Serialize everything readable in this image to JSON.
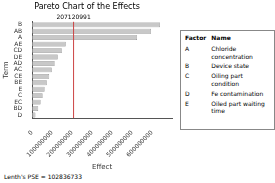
{
  "chart_data": {
    "type": "bar",
    "orientation": "horizontal",
    "title": "Pareto Chart of the Effects",
    "xlabel": "Effect",
    "ylabel": "Term",
    "categories": [
      "B",
      "AB",
      "A",
      "AE",
      "CD",
      "DE",
      "AD",
      "AC",
      "CE",
      "BE",
      "E",
      "C",
      "EC",
      "BD",
      "D"
    ],
    "values": [
      640000000,
      595000000,
      525000000,
      168000000,
      148000000,
      128000000,
      112000000,
      98000000,
      85000000,
      73000000,
      62000000,
      52000000,
      42000000,
      30000000,
      16000000
    ],
    "color": "#c8c8c8",
    "xlim": [
      0,
      700000000
    ],
    "xticks": [
      0,
      100000000,
      200000000,
      300000000,
      400000000,
      500000000,
      600000000
    ],
    "grid": false,
    "annotations": [
      {
        "type": "vline",
        "x": 207120991,
        "label": "207120991",
        "color": "#cc4444"
      },
      {
        "type": "note",
        "text": "Lenth's PSE = 102836733"
      }
    ],
    "factor_table": {
      "columns": [
        "Factor",
        "Name"
      ],
      "rows": [
        [
          "A",
          "Chloride concentration"
        ],
        [
          "B",
          "Device state"
        ],
        [
          "C",
          "Oiling part condition"
        ],
        [
          "D",
          "Fe contamination"
        ],
        [
          "E",
          "Oiled part waiting time"
        ]
      ]
    }
  }
}
